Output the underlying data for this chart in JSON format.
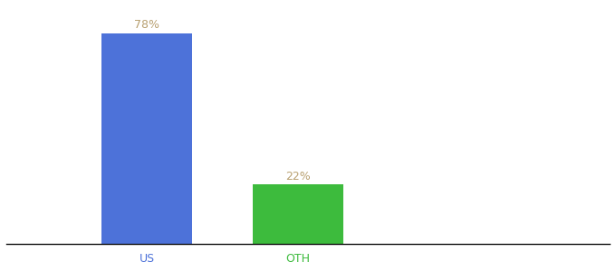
{
  "categories": [
    "US",
    "OTH"
  ],
  "values": [
    78,
    22
  ],
  "bar_colors": [
    "#4d72d9",
    "#3dbb3d"
  ],
  "label_color": "#b8a070",
  "label_fontsize": 9,
  "tick_fontsize": 9,
  "background_color": "#ffffff",
  "ylim": [
    0,
    88
  ],
  "bar_width": 0.18,
  "x_positions": [
    0.28,
    0.58
  ],
  "xlim": [
    0.0,
    1.2
  ]
}
